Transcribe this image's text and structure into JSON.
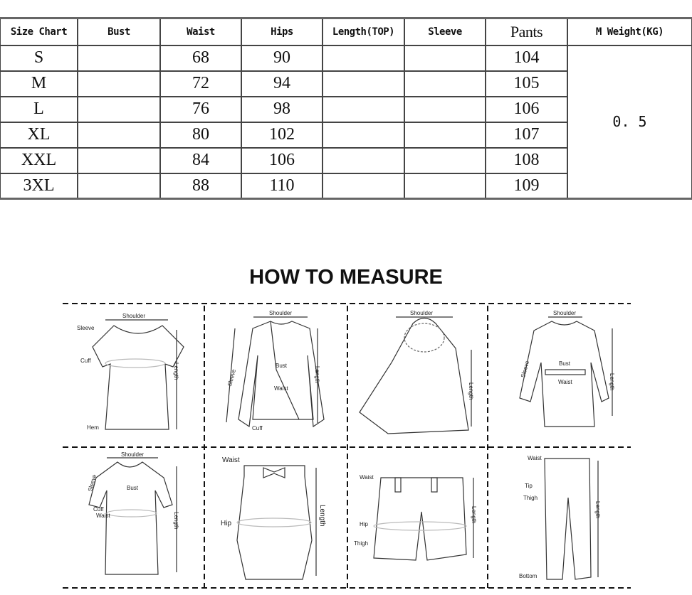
{
  "table": {
    "headers": [
      "Size Chart",
      "Bust",
      "Waist",
      "Hips",
      "Length(TOP)",
      "Sleeve",
      "Pants",
      "M Weight(KG)"
    ],
    "rows": [
      {
        "size": "S",
        "bust": "",
        "waist": "68",
        "hips": "90",
        "length": "",
        "sleeve": "",
        "pants": "104"
      },
      {
        "size": "M",
        "bust": "",
        "waist": "72",
        "hips": "94",
        "length": "",
        "sleeve": "",
        "pants": "105"
      },
      {
        "size": "L",
        "bust": "",
        "waist": "76",
        "hips": "98",
        "length": "",
        "sleeve": "",
        "pants": "106"
      },
      {
        "size": "XL",
        "bust": "",
        "waist": "80",
        "hips": "102",
        "length": "",
        "sleeve": "",
        "pants": "107"
      },
      {
        "size": "XXL",
        "bust": "",
        "waist": "84",
        "hips": "106",
        "length": "",
        "sleeve": "",
        "pants": "108"
      },
      {
        "size": "3XL",
        "bust": "",
        "waist": "88",
        "hips": "110",
        "length": "",
        "sleeve": "",
        "pants": "109"
      }
    ],
    "weight": "0. 5"
  },
  "title": "HOW TO MEASURE",
  "panels": {
    "tshirt": {
      "shoulder": "Shoulder",
      "sleeve": "Sleeve",
      "cuff": "Cuff",
      "hem": "Hem",
      "length": "Length"
    },
    "blazer": {
      "shoulder": "Shoulder",
      "sleeve": "Sleeve",
      "bust": "Bust",
      "waist": "Waist",
      "cuff": "Cuff",
      "length": "Length"
    },
    "cape": {
      "shoulder": "Shoulder",
      "length": "Length"
    },
    "coat": {
      "shoulder": "Shoulder",
      "sleeve": "Sleeve",
      "bust": "Bust",
      "waist": "Waist",
      "length": "Length"
    },
    "dress": {
      "shoulder": "Shoulder",
      "sleeve": "Sleeve",
      "bust": "Bust",
      "cuff": "Cuff",
      "waist": "Waist",
      "length": "Length"
    },
    "skirt": {
      "waist": "Waist",
      "hip": "Hip",
      "length": "Length"
    },
    "shorts": {
      "waist": "Waist",
      "hip": "Hip",
      "thigh": "Thigh",
      "length": "Length"
    },
    "pants": {
      "waist": "Waist",
      "tip": "Tip",
      "thigh": "Thigh",
      "bottom": "Bottom",
      "length": "Length"
    }
  }
}
